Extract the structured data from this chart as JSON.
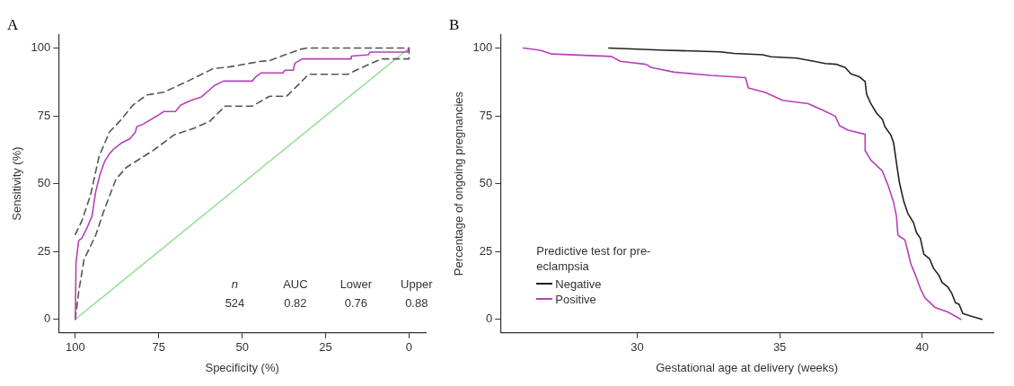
{
  "chart_data": [
    {
      "type": "line",
      "title": "A",
      "xlabel": "Specificity (%)",
      "ylabel": "Sensitivity (%)",
      "xlim": [
        105,
        -5
      ],
      "ylim": [
        -5,
        105
      ],
      "xticks": [
        100,
        75,
        50,
        25,
        0
      ],
      "yticks": [
        0,
        25,
        50,
        75,
        100
      ],
      "grid": false,
      "legend": false,
      "marker": "none",
      "annotations": [
        "n",
        "AUC",
        "Lower",
        "Upper",
        "524",
        "0.82",
        "0.76",
        "0.88"
      ],
      "series": [
        {
          "color": "#b83fb8",
          "line_style": "solid",
          "x": [
            100,
            99.8,
            99,
            98,
            96.4,
            95,
            93.9,
            92.7,
            91.3,
            89.8,
            88.3,
            86.2,
            83.7,
            82,
            81.6,
            79.6,
            75.5,
            73.5,
            70,
            68.4,
            65.3,
            62.2,
            59.7,
            58.2,
            55.6,
            47,
            46,
            44.4,
            37.8,
            37.2,
            34.7,
            34.2,
            32,
            17.3,
            17.3,
            12.2,
            11.7,
            0.5,
            0
          ],
          "values": [
            0,
            21,
            29,
            30,
            34,
            38,
            47,
            53,
            58,
            61,
            63,
            65,
            66.5,
            69,
            71,
            72,
            75,
            76.6,
            76.6,
            79,
            80.7,
            82,
            84.7,
            86.3,
            87.8,
            87.8,
            89.3,
            90.8,
            90.8,
            91.8,
            91.8,
            94.4,
            96,
            96,
            97,
            97.5,
            98.5,
            98.5,
            100
          ]
        },
        {
          "color": "#555555",
          "line_style": "dashed",
          "x": [
            100,
            98,
            95.4,
            92.9,
            89.8,
            86.7,
            82.7,
            78.6,
            73.5,
            66.3,
            58.7,
            54,
            44.9,
            41.8,
            32.7,
            30.6,
            0
          ],
          "values": [
            31.3,
            36.4,
            46,
            60,
            69,
            73,
            79,
            82.7,
            83.7,
            87.8,
            92.4,
            93,
            95,
            95.4,
            99.5,
            100,
            100
          ]
        },
        {
          "color": "#555555",
          "line_style": "dashed",
          "x": [
            100,
            99,
            97.4,
            93.9,
            91.3,
            87.8,
            84.7,
            76.5,
            70.4,
            64.3,
            59.7,
            55.1,
            47,
            41.8,
            36.7,
            33.7,
            30.1,
            18.4,
            12.2,
            8.2,
            0,
            0
          ],
          "values": [
            0,
            10,
            22,
            31,
            40.5,
            51.7,
            56,
            62.4,
            68,
            70.5,
            73,
            78.6,
            78.6,
            82.2,
            82.2,
            85.8,
            90.3,
            90.3,
            93.9,
            96,
            96,
            100
          ]
        },
        {
          "color": "#99e099",
          "line_style": "solid",
          "x": [
            100,
            0
          ],
          "values": [
            0,
            100
          ]
        }
      ]
    },
    {
      "type": "line",
      "title": "B",
      "xlabel": "Gestational age at delivery (weeks)",
      "ylabel": "Percentage of ongoing pregnancies",
      "xlim": [
        25.2,
        42.5
      ],
      "ylim": [
        -5,
        105
      ],
      "xticks": [
        30,
        35,
        40
      ],
      "yticks": [
        0,
        25,
        50,
        75,
        100
      ],
      "grid": false,
      "legend": "bottom left",
      "legend_title": "Predictive test for pre-eclampsia",
      "marker": "none",
      "series": [
        {
          "name": "Negative",
          "color": "#222222",
          "line_style": "solid",
          "x": [
            29,
            31,
            32.9,
            33.4,
            34.4,
            34.7,
            35.6,
            36.2,
            36.6,
            37,
            37.3,
            37.5,
            37.8,
            38,
            38.05,
            38.2,
            38.4,
            38.6,
            38.7,
            38.9,
            39,
            39.1,
            39.2,
            39.35,
            39.5,
            39.7,
            39.8,
            39.94,
            40.06,
            40.26,
            40.4,
            40.6,
            40.7,
            40.9,
            41.04,
            41.17,
            41.3,
            41.43,
            41.7,
            42.1
          ],
          "values": [
            100,
            99.2,
            98.6,
            98,
            97.5,
            96.8,
            96.3,
            95.1,
            94.3,
            94,
            92.8,
            90.5,
            89.4,
            87.6,
            83,
            79.5,
            76,
            73.8,
            70.9,
            68,
            65,
            57.6,
            50.6,
            43.7,
            39,
            35.6,
            32,
            29.8,
            24,
            22.3,
            18.8,
            16,
            13.6,
            11.9,
            9.6,
            6.1,
            5.5,
            2.1,
            1.2,
            0
          ]
        },
        {
          "name": "Positive",
          "color": "#b83fb8",
          "line_style": "solid",
          "x": [
            26,
            26.6,
            27,
            29.1,
            29.4,
            30.3,
            30.5,
            31.3,
            32.6,
            33.8,
            33.9,
            34.5,
            35.1,
            36,
            36.5,
            36.95,
            37.1,
            37.4,
            38,
            38,
            38.2,
            38.6,
            38.8,
            39,
            39.1,
            39.15,
            39.4,
            39.6,
            39.8,
            39.94,
            40.1,
            40.45,
            40.9,
            41.36
          ],
          "values": [
            100,
            99.2,
            97.8,
            96.9,
            95.1,
            94,
            92.8,
            91.1,
            89.9,
            89.1,
            85.3,
            83.6,
            80.7,
            79.5,
            77.2,
            74.9,
            71.4,
            69.7,
            68.2,
            62.2,
            58.7,
            54.7,
            49.5,
            43.1,
            37.9,
            31,
            29.2,
            20.6,
            15.4,
            11.3,
            7.9,
            4.4,
            2.7,
            0
          ]
        }
      ]
    }
  ]
}
